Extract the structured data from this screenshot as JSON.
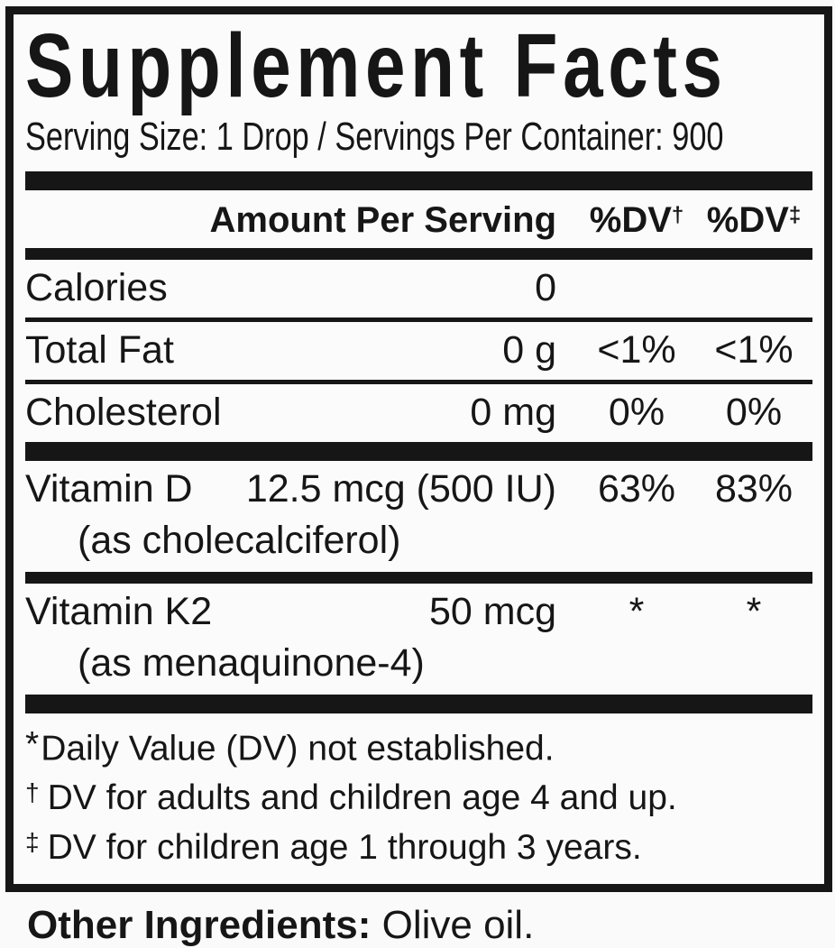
{
  "label": {
    "title": "Supplement Facts",
    "serving_line": "Serving Size: 1 Drop / Servings Per Container: 900",
    "header": {
      "amount": "Amount Per Serving",
      "dv1": "%DV",
      "dv1_mark": "†",
      "dv2": "%DV",
      "dv2_mark": "‡"
    },
    "rows": [
      {
        "name": "Calories",
        "amount": "0",
        "dv1": "",
        "dv2": "",
        "sub": ""
      },
      {
        "name": "Total Fat",
        "amount": "0 g",
        "dv1": "<1%",
        "dv2": "<1%",
        "sub": ""
      },
      {
        "name": "Cholesterol",
        "amount": "0 mg",
        "dv1": "0%",
        "dv2": "0%",
        "sub": ""
      },
      {
        "name": "Vitamin D",
        "amount": "12.5 mcg (500 IU)",
        "dv1": "63%",
        "dv2": "83%",
        "sub": "(as cholecalciferol)"
      },
      {
        "name": "Vitamin K2",
        "amount": "50 mcg",
        "dv1": "*",
        "dv2": "*",
        "sub": "(as menaquinone-4)"
      }
    ],
    "footnotes": [
      {
        "mark": "*",
        "text": "Daily Value (DV) not established."
      },
      {
        "mark": "†",
        "text": "DV for adults and children age 4 and up."
      },
      {
        "mark": "‡",
        "text": "DV for children age 1 through 3 years."
      }
    ],
    "other_ingredients_label": "Other Ingredients:",
    "other_ingredients_value": "Olive oil."
  },
  "colors": {
    "ink": "#161616",
    "paper": "#fafafa"
  }
}
